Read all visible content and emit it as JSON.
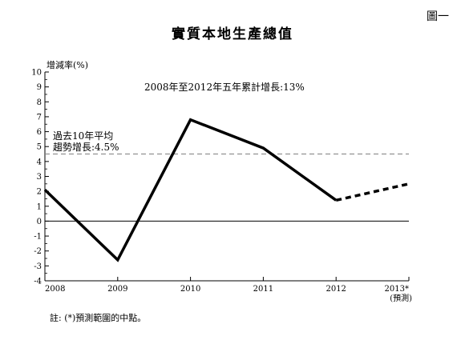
{
  "figure_label": "圖一",
  "chart_data": {
    "type": "line",
    "title": "實質本地生產總值",
    "ylabel": "增減率(%)",
    "xlabel": "",
    "ylim": [
      -4,
      10
    ],
    "yticks": [
      -4,
      -3,
      -2,
      -1,
      0,
      1,
      2,
      3,
      4,
      5,
      6,
      7,
      8,
      9,
      10
    ],
    "x": [
      "2008",
      "2009",
      "2010",
      "2011",
      "2012",
      "2013*"
    ],
    "x_sublabels": [
      "",
      "",
      "",
      "",
      "",
      "(預測)"
    ],
    "series": [
      {
        "values": [
          2.1,
          -2.6,
          6.8,
          4.9,
          1.4,
          2.5
        ],
        "projected_from_index": 4
      }
    ],
    "reference_line": {
      "value": 4.5,
      "label_line1": "過去10年平均",
      "label_line2": "趨勢增長:4.5%"
    },
    "annotation": "2008年至2012年五年累計增長:13%",
    "grid": false,
    "legend": "none",
    "colors": {
      "line": "#000000",
      "reference": "#7f7f7f"
    }
  },
  "footnote": "註: (*)預測範圍的中點。"
}
